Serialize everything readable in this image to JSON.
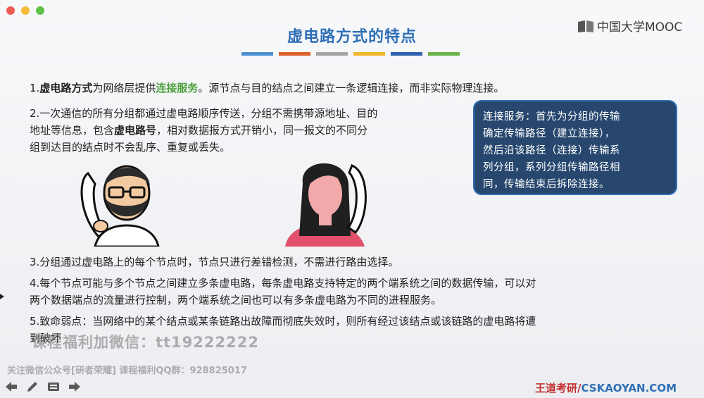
{
  "slide": {
    "title": "虚电路方式的特点",
    "accent_colors": [
      "#4a8fd1",
      "#d9602a",
      "#a5a5a5",
      "#f2b731",
      "#2f5fb0",
      "#69b34a"
    ],
    "logo_text": "中国大学MOOC",
    "points": {
      "p1": {
        "num": "1.",
        "bold1": "虚电路方式",
        "t1": "为网络层提供",
        "highlight": "连接服务",
        "t2": "。源节点与目的结点之间建立一条逻辑连接，而非实际物理连接。"
      },
      "p2": {
        "line1": "2.一次通信的所有分组都通过虚电路顺序传送，分组不需携带源地址、目的",
        "line2a": "地址等信息，包含",
        "line2b": "虚电路号",
        "line2c": "，相对数据报方式开销小，同一报文的不同分",
        "line3": "组到达目的结点时不会乱序、重复或丢失。"
      },
      "p3": "3.分组通过虚电路上的每个节点时，节点只进行差错检测，不需进行路由选择。",
      "p4": {
        "line1": "4.每个节点可能与多个节点之间建立多条虚电路，每条虚电路支持特定的两个端系统之间的数据传输，可以对",
        "line2": "两个数据端点的流量进行控制，两个端系统之间也可以有多条虚电路为不同的进程服务。"
      },
      "p5": {
        "line1": "5.致命弱点：当网络中的某个结点或某条链路出故障而彻底失效时，则所有经过该结点或该链路的虚电路将遭",
        "line2": "到破坏"
      }
    },
    "callout": {
      "line1": "连接服务：首先为分组的传输",
      "line2": "确定传输路径（建立连接），",
      "line3": "然后沿该路径（连接）传输系",
      "line4": "列分组，系列分组传输路径相",
      "line5": "同，传输结束后拆除连接。"
    }
  },
  "watermarks": {
    "wechat": "课程福利加微信：tt19222222",
    "public": "关注微信公众号[研者荣耀] 课程福利QQ群：928825017"
  },
  "footer": {
    "brand_cn": "王道考研/",
    "brand_en": "CSKAOYAN.COM"
  },
  "toolbar_icons": [
    "arrow-left-icon",
    "pen-icon",
    "menu-icon",
    "arrow-right-icon"
  ]
}
